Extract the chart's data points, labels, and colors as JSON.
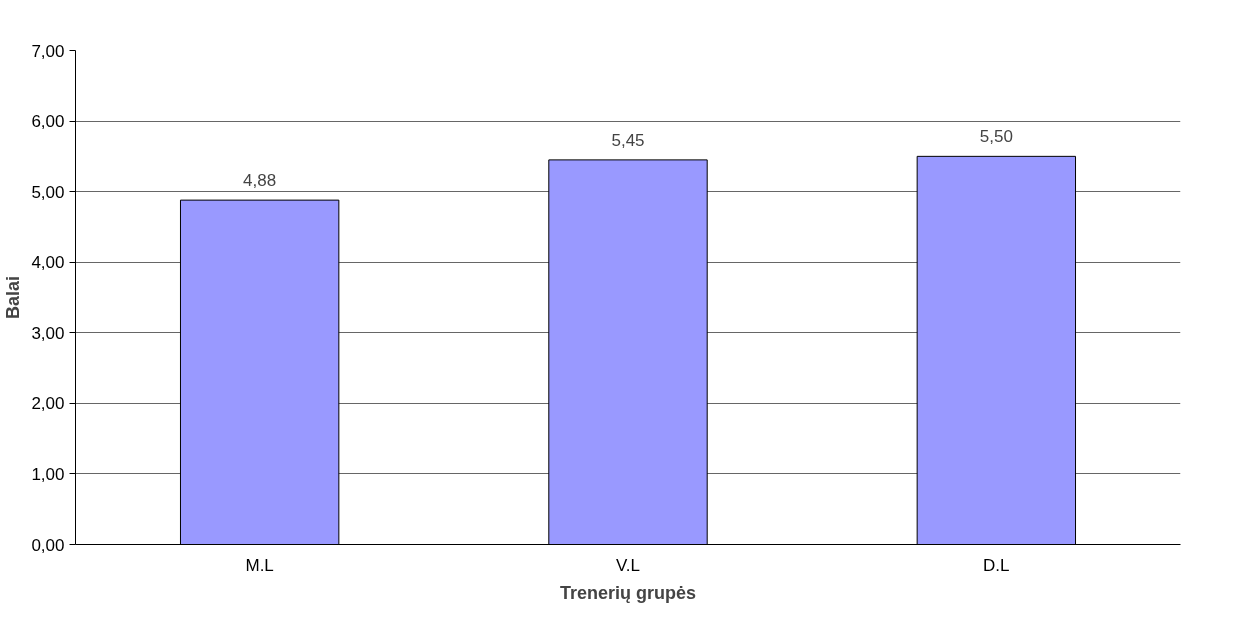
{
  "chart_data": {
    "type": "bar",
    "xlabel": "Trenerių grupės",
    "ylabel": "Balai",
    "categories": [
      "M.L",
      "V.L",
      "D.L"
    ],
    "values": [
      4.88,
      5.45,
      5.5
    ],
    "value_labels": [
      "4,88",
      "5,45",
      "5,50"
    ],
    "color": "#9999ff",
    "ylim": [
      0,
      7
    ],
    "yticks": [
      {
        "value": 0,
        "label": "0,00"
      },
      {
        "value": 1,
        "label": "1,00"
      },
      {
        "value": 2,
        "label": "2,00"
      },
      {
        "value": 3,
        "label": "3,00"
      },
      {
        "value": 4,
        "label": "4,00"
      },
      {
        "value": 5,
        "label": "5,00"
      },
      {
        "value": 6,
        "label": "6,00"
      },
      {
        "value": 7,
        "label": "7,00"
      }
    ],
    "grid": "y"
  }
}
